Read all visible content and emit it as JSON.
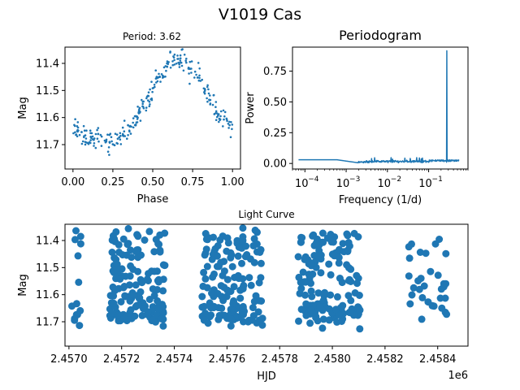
{
  "figure": {
    "suptitle": "V1019 Cas"
  },
  "chart_data": [
    {
      "id": "phase",
      "type": "scatter",
      "title": "Period: 3.62",
      "xlabel": "Phase",
      "ylabel": "Mag",
      "xlim": [
        -0.05,
        1.05
      ],
      "ylim": [
        11.79,
        11.34
      ],
      "y_inverted": true,
      "xticks": [
        0.0,
        0.25,
        0.5,
        0.75,
        1.0
      ],
      "xtick_labels": [
        "0.00",
        "0.25",
        "0.50",
        "0.75",
        "1.00"
      ],
      "yticks": [
        11.4,
        11.5,
        11.6,
        11.7
      ],
      "ytick_labels": [
        "11.4",
        "11.5",
        "11.6",
        "11.7"
      ],
      "color": "#1f77b4",
      "marker_size": "small",
      "curve": {
        "description": "folded light curve",
        "knots_phase": [
          0.0,
          0.05,
          0.15,
          0.25,
          0.35,
          0.45,
          0.55,
          0.62,
          0.7,
          0.78,
          0.85,
          0.92,
          1.0
        ],
        "knots_mag": [
          11.64,
          11.66,
          11.68,
          11.68,
          11.65,
          11.55,
          11.45,
          11.39,
          11.39,
          11.44,
          11.52,
          11.6,
          11.63
        ],
        "n_points": 300,
        "scatter": 0.018
      }
    },
    {
      "id": "periodogram",
      "type": "line",
      "title": "Periodogram",
      "xlabel": "Frequency (1/d)",
      "ylabel": "Power",
      "x_scale": "log",
      "xlim": [
        5e-05,
        0.9
      ],
      "ylim": [
        -0.045,
        0.945
      ],
      "xticks": [
        0.0001,
        0.001,
        0.01,
        0.1
      ],
      "xtick_labels": [
        "10",
        "10",
        "10",
        "10"
      ],
      "xtick_exponents": [
        "−4",
        "−3",
        "−2",
        "−1"
      ],
      "yticks": [
        0.0,
        0.25,
        0.5,
        0.75
      ],
      "ytick_labels": [
        "0.00",
        "0.25",
        "0.50",
        "0.75"
      ],
      "color": "#1f77b4",
      "peak": {
        "frequency": 0.276,
        "power": 0.915
      },
      "baseline": {
        "low_freq_power": 0.03,
        "mid_freq_power": 0.005,
        "high_freq_power": 0.015
      }
    },
    {
      "id": "lightcurve",
      "type": "scatter",
      "title": "Light Curve",
      "xlabel": "HJD",
      "ylabel": "Mag",
      "x_offset_label": "1e6",
      "xlim": [
        2456985,
        2458515
      ],
      "ylim": [
        11.79,
        11.34
      ],
      "y_inverted": true,
      "xticks": [
        2457000,
        2457200,
        2457400,
        2457600,
        2457800,
        2458000,
        2458200,
        2458400
      ],
      "xtick_labels": [
        "2.4570",
        "2.4572",
        "2.4574",
        "2.4576",
        "2.4578",
        "2.4580",
        "2.4582",
        "2.4584"
      ],
      "yticks": [
        11.4,
        11.5,
        11.6,
        11.7
      ],
      "ytick_labels": [
        "11.4",
        "11.5",
        "11.6",
        "11.7"
      ],
      "color": "#1f77b4",
      "marker_size": "large",
      "seasons": [
        {
          "start": 2457008,
          "end": 2457045,
          "n": 14
        },
        {
          "start": 2457155,
          "end": 2457365,
          "n": 150
        },
        {
          "start": 2457505,
          "end": 2457735,
          "n": 150
        },
        {
          "start": 2457870,
          "end": 2458105,
          "n": 150
        },
        {
          "start": 2458290,
          "end": 2458435,
          "n": 32
        }
      ],
      "period_days": 3.62
    }
  ]
}
